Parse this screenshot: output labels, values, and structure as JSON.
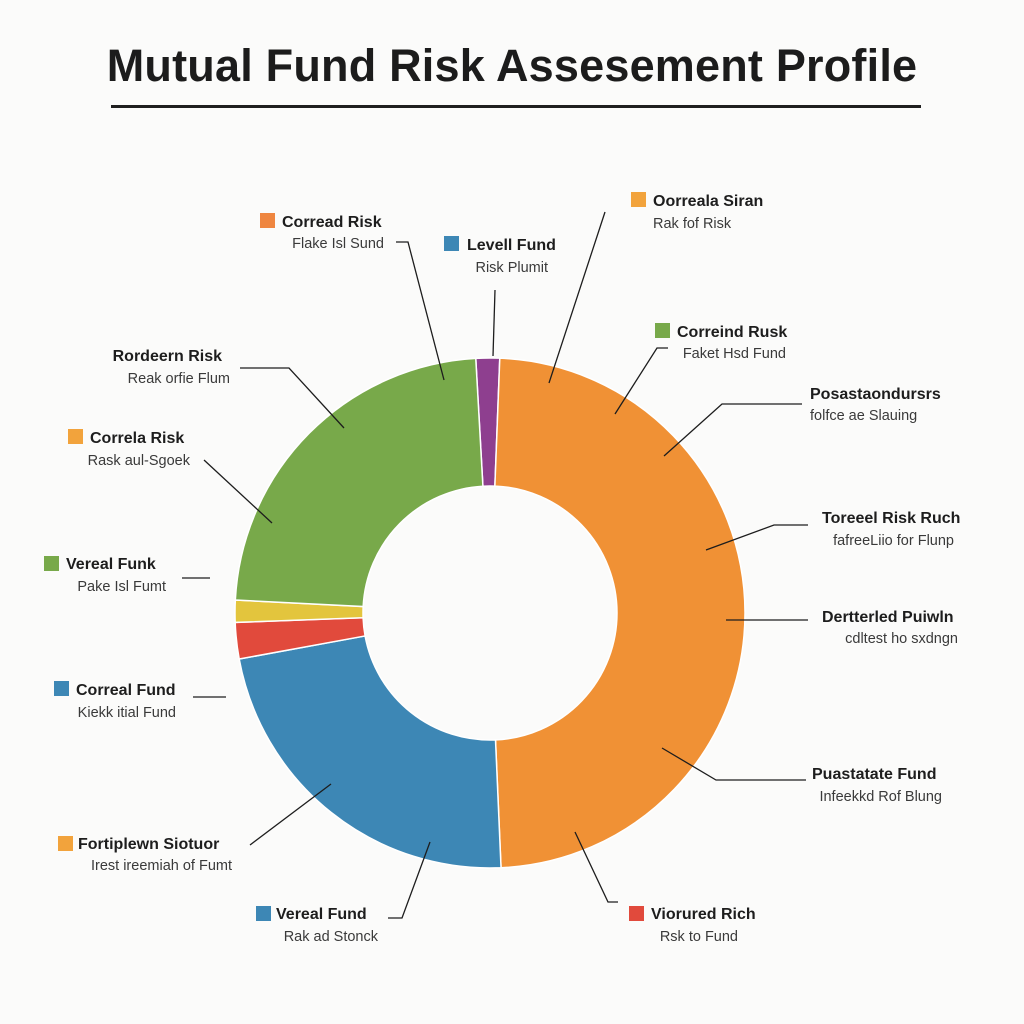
{
  "chart_data": {
    "type": "pie",
    "title": "Mutual Fund Risk Assesement Profile",
    "donut": true,
    "slices": [
      {
        "value": 1.5,
        "color": "#8e3f8f"
      },
      {
        "value": 48.7,
        "color": "#f09135"
      },
      {
        "value": 22.8,
        "color": "#3d87b5"
      },
      {
        "value": 2.3,
        "color": "#e14a3c"
      },
      {
        "value": 1.4,
        "color": "#e3c53d"
      },
      {
        "value": 23.3,
        "color": "#78a94a"
      }
    ],
    "labels": [
      {
        "title": "Corread Risk",
        "subtitle": "Flake Isl Sund",
        "swatch": "#ef8640"
      },
      {
        "title": "Levell Fund",
        "subtitle": "Risk Plumit",
        "swatch": "#3d87b5"
      },
      {
        "title": "Oorreala Siran",
        "subtitle": "Rak fof Risk",
        "swatch": "#f2a33c"
      },
      {
        "title": "Correind Rusk",
        "subtitle": "Faket Hsd Fund",
        "swatch": "#78a94a"
      },
      {
        "title": "Rordeern Risk",
        "subtitle": "Reak orfie Flum",
        "swatch": null
      },
      {
        "title": "Posastaondursrs",
        "subtitle": "folfce ae Slauing",
        "swatch": null
      },
      {
        "title": "Correla Risk",
        "subtitle": "Rask aul-Sgoek",
        "swatch": "#f2a33c"
      },
      {
        "title": "Toreeel Risk Ruch",
        "subtitle": "fafreeLiio for Flunp",
        "swatch": null
      },
      {
        "title": "Vereal Funk",
        "subtitle": "Pake Isl Fumt",
        "swatch": "#78a94a"
      },
      {
        "title": "Dertterled Puiwln",
        "subtitle": "cdltest ho sxdngn",
        "swatch": null
      },
      {
        "title": "Correal Fund",
        "subtitle": "Kiekk itial Fund",
        "swatch": "#3d87b5"
      },
      {
        "title": "Puastatate Fund",
        "subtitle": "Infeekkd Rof Blung",
        "swatch": null
      },
      {
        "title": "Fortiplewn Siotuor",
        "subtitle": "Irest ireemiah of Fumt",
        "swatch": "#f2a33c"
      },
      {
        "title": "Vereal Fund",
        "subtitle": "Rak ad Stonck",
        "swatch": "#3d87b5"
      },
      {
        "title": "Viorured Rich",
        "subtitle": "Rsk to Fund",
        "swatch": "#e14a3c"
      }
    ]
  }
}
